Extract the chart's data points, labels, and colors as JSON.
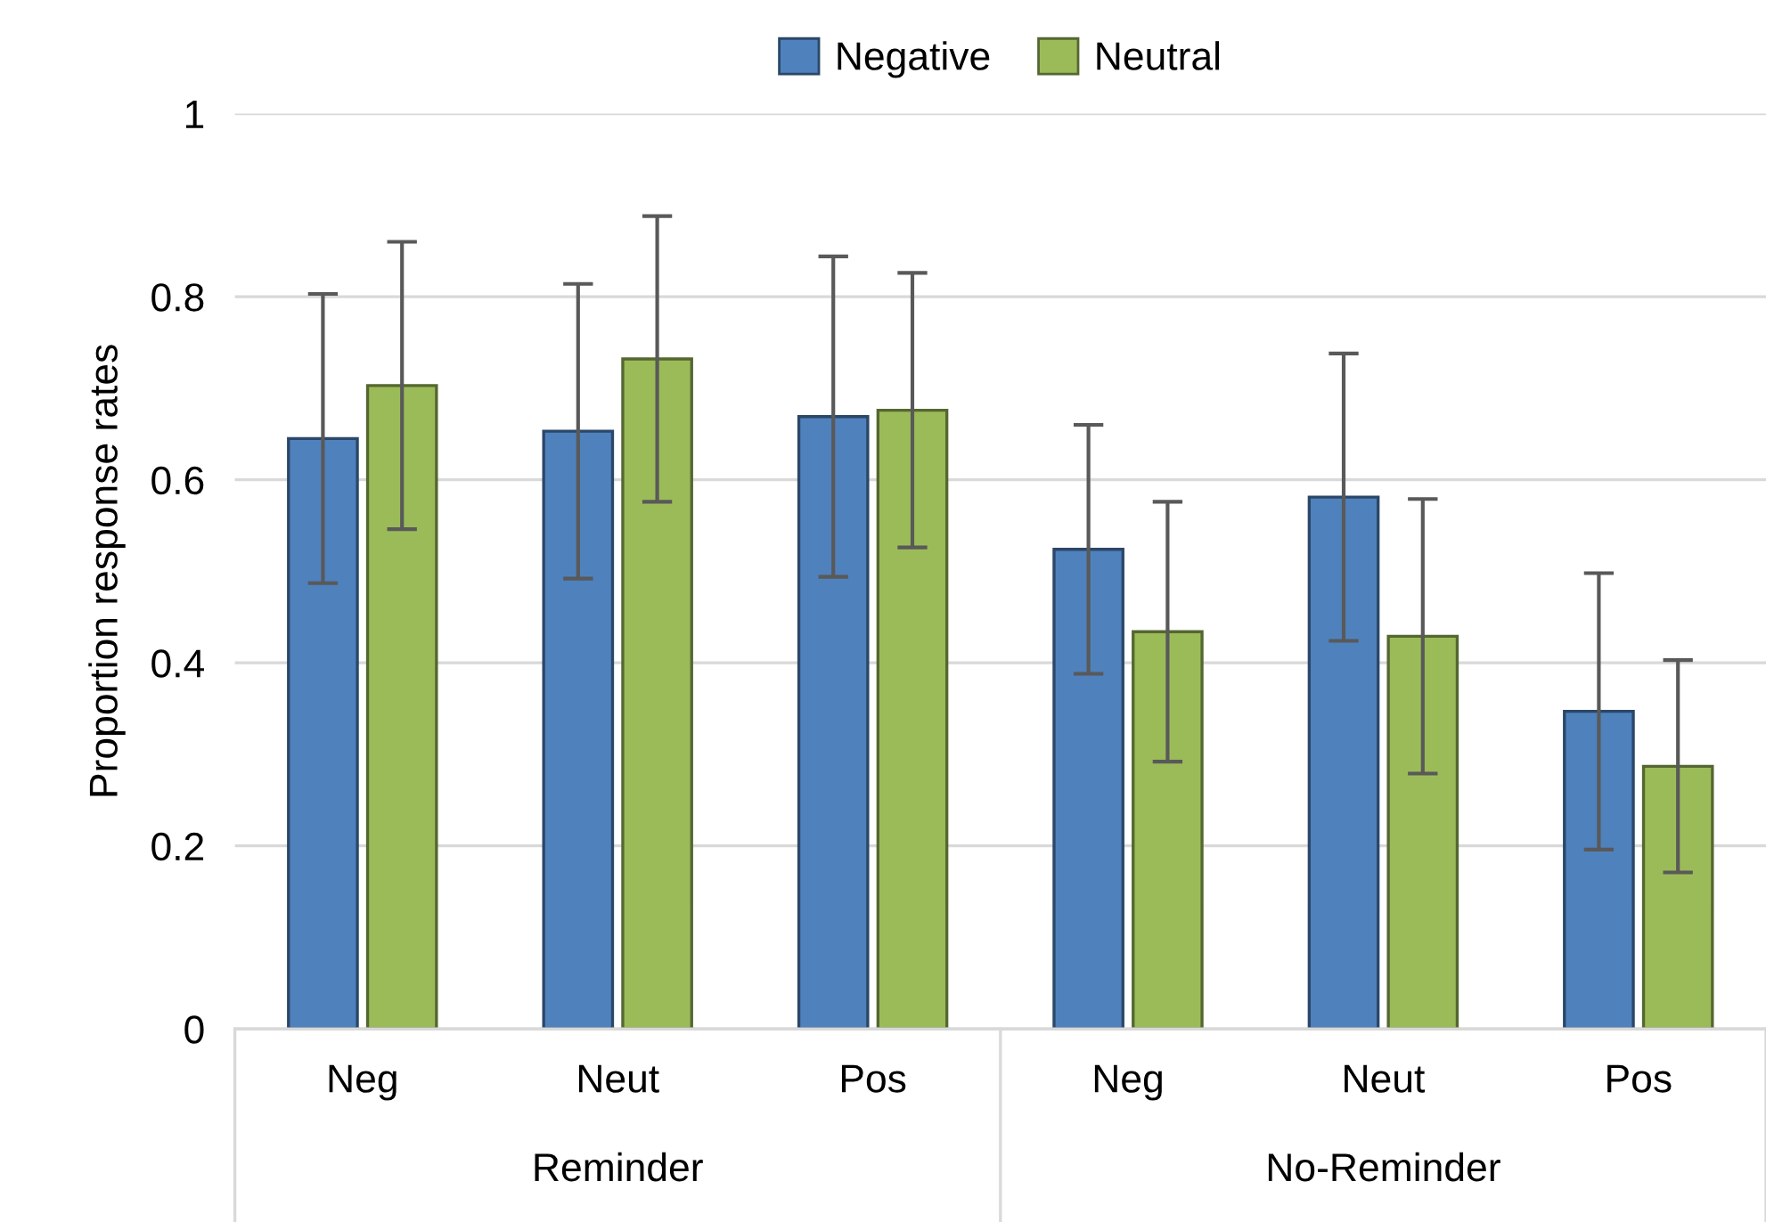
{
  "chart_data": {
    "type": "bar",
    "ylabel": "Proportion response rates",
    "categories": [
      "Neg",
      "Neut",
      "Pos",
      "Neg",
      "Neut",
      "Pos"
    ],
    "annotations": [
      "Reminder",
      "No-Reminder"
    ],
    "series": [
      {
        "name": "Negative",
        "color": "#4f81bd",
        "values": [
          0.645,
          0.653,
          0.669,
          0.524,
          0.581,
          0.347
        ],
        "errors": [
          0.158,
          0.161,
          0.175,
          0.136,
          0.157,
          0.151
        ]
      },
      {
        "name": "Neutral",
        "color": "#9bbb59",
        "values": [
          0.703,
          0.732,
          0.676,
          0.434,
          0.429,
          0.287
        ],
        "errors": [
          0.157,
          0.156,
          0.15,
          0.142,
          0.15,
          0.116
        ]
      }
    ],
    "ylim": [
      0,
      1
    ],
    "yticks": [
      0,
      0.2,
      0.4,
      0.6,
      0.8,
      1
    ],
    "grid": "y",
    "legend": "top"
  }
}
